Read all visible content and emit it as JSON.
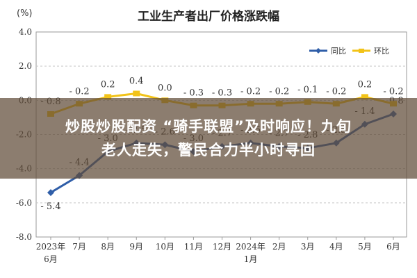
{
  "headline": "炒股炒股配资 “骑手联盟”及时响应！九旬老人走失，警民合力半小时寻回",
  "chart_data": {
    "type": "line",
    "title": "工业生产者出厂价格涨跌幅",
    "unit": "(%)",
    "categories": [
      "2023年\n6月",
      "7月",
      "8月",
      "9月",
      "10月",
      "11月",
      "12月",
      "2024年\n1月",
      "2月",
      "3月",
      "4月",
      "5月",
      "6月"
    ],
    "ylim": [
      -8.0,
      4.0
    ],
    "yticks": [
      "4.0",
      "2.0",
      "0.0",
      "-2.0",
      "-4.0",
      "-6.0",
      "-8.0"
    ],
    "ytick_values": [
      4,
      2,
      0,
      -2,
      -4,
      -6,
      -8
    ],
    "grid": true,
    "legend_position": "top-right",
    "series": [
      {
        "name": "同比",
        "color": "#2f5ea8",
        "values": [
          -5.4,
          -4.4,
          -3.0,
          -2.5,
          -2.6,
          -3.0,
          -2.7,
          -2.5,
          -2.7,
          -2.8,
          -2.5,
          -1.4,
          -0.8
        ],
        "labels": [
          "-5.4",
          "-4.4",
          "-3.0",
          "-2.5",
          "-2.6",
          "-3.0",
          "-2.7",
          "-2.5",
          "-2.7",
          "-2.8",
          "-2.5",
          "-1.4",
          "-0.8"
        ]
      },
      {
        "name": "环比",
        "color": "#f2c318",
        "values": [
          -0.8,
          -0.2,
          0.2,
          0.4,
          0.0,
          -0.3,
          -0.3,
          -0.2,
          -0.2,
          -0.1,
          -0.2,
          0.2,
          -0.2
        ],
        "labels": [
          "-0.8",
          "-0.2",
          "0.2",
          "0.4",
          "0.0",
          "-0.3",
          "-0.3",
          "-0.2",
          "-0.2",
          "-0.1",
          "-0.2",
          "0.2",
          "-0.2"
        ]
      }
    ]
  }
}
